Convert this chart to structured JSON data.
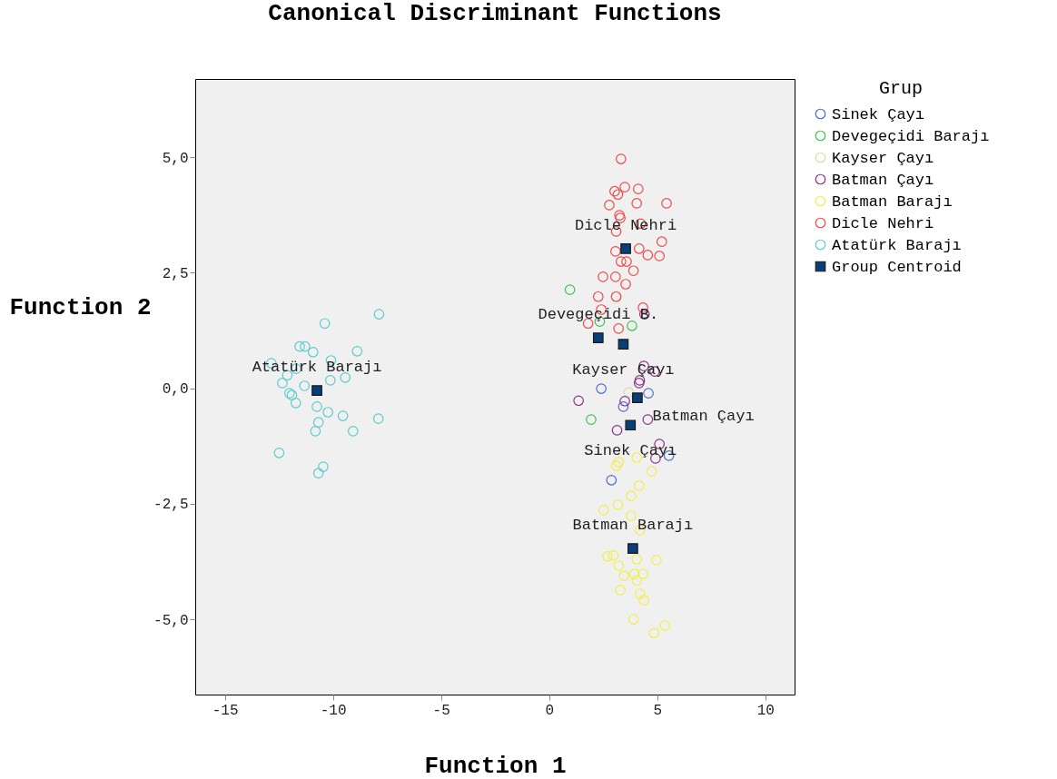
{
  "chart_data": {
    "type": "scatter",
    "title": "Canonical Discriminant Functions",
    "xlabel": "Function 1",
    "ylabel": "Function 2",
    "legend_title": "Grup",
    "legend": "right",
    "grid": false,
    "xlim": [
      -16.37,
      11.35
    ],
    "ylim": [
      -6.63,
      6.69
    ],
    "xticks": [
      -15,
      -10,
      -5,
      0,
      5,
      10
    ],
    "yticks": [
      {
        "value": 5,
        "label": "5,0"
      },
      {
        "value": 2.5,
        "label": "2,5"
      },
      {
        "value": 0,
        "label": "0,0"
      },
      {
        "value": -2.5,
        "label": "-2,5"
      },
      {
        "value": -5,
        "label": "-5,0"
      }
    ],
    "series": [
      {
        "name": "Sinek Çayı",
        "color": "#4a6ccc",
        "marker": "circle",
        "x": [
          2.41,
          4.59,
          3.43,
          5.54,
          2.88
        ],
        "values": [
          -0.01,
          -0.11,
          -0.4,
          -1.46,
          -1.99
        ]
      },
      {
        "name": "Devegeçidi Barajı",
        "color": "#3cc24a",
        "marker": "circle",
        "x": [
          0.96,
          2.34,
          3.83,
          1.94
        ],
        "values": [
          2.13,
          1.44,
          1.35,
          -0.68
        ]
      },
      {
        "name": "Kayser Çayı",
        "color": "#e0d9a4",
        "marker": "circle",
        "x": [
          3.1,
          3.68
        ],
        "values": [
          1.98,
          -0.09
        ]
      },
      {
        "name": "Batman Çayı",
        "color": "#8b2f8b",
        "marker": "circle",
        "x": [
          4.41,
          4.38,
          4.88,
          4.19,
          4.16,
          1.36,
          3.5,
          4.56,
          3.14,
          5.1,
          4.92
        ],
        "values": [
          1.6,
          0.48,
          0.36,
          0.17,
          0.11,
          -0.27,
          -0.28,
          -0.68,
          -0.91,
          -1.21,
          -1.52
        ]
      },
      {
        "name": "Batman Barajı",
        "color": "#f2ee45",
        "marker": "circle",
        "x": [
          4.05,
          3.21,
          3.1,
          4.74,
          4.16,
          3.79,
          3.18,
          2.52,
          3.79,
          4.2,
          2.7,
          2.96,
          4.05,
          4.96,
          3.21,
          3.47,
          3.94,
          4.34,
          4.05,
          3.29,
          4.2,
          4.38,
          3.9,
          5.36,
          4.85
        ],
        "values": [
          -1.5,
          -1.6,
          -1.68,
          -1.8,
          -2.11,
          -2.33,
          -2.52,
          -2.64,
          -2.76,
          -3.07,
          -3.64,
          -3.62,
          -3.7,
          -3.72,
          -3.84,
          -4.06,
          -4.02,
          -4.02,
          -4.16,
          -4.37,
          -4.45,
          -4.59,
          -5.0,
          -5.14,
          -5.3
        ]
      },
      {
        "name": "Dicle Nehri",
        "color": "#f04848",
        "marker": "circle",
        "x": [
          3.32,
          3.03,
          3.5,
          3.18,
          4.12,
          2.78,
          4.05,
          5.43,
          3.25,
          3.29,
          4.23,
          3.1,
          5.21,
          3.07,
          4.16,
          4.56,
          5.1,
          3.32,
          3.58,
          3.9,
          2.49,
          3.07,
          3.54,
          2.27,
          3.1,
          2.41,
          4.34,
          1.8,
          3.21
        ],
        "values": [
          4.96,
          4.26,
          4.35,
          4.19,
          4.31,
          3.96,
          4.0,
          4.0,
          3.74,
          3.68,
          3.56,
          3.39,
          3.17,
          2.96,
          3.02,
          2.88,
          2.86,
          2.74,
          2.74,
          2.54,
          2.41,
          2.41,
          2.25,
          1.98,
          1.98,
          1.7,
          1.74,
          1.4,
          1.29
        ]
      },
      {
        "name": "Atatürk Barajı",
        "color": "#5acccc",
        "marker": "circle",
        "x": [
          -10.38,
          -7.87,
          -11.54,
          -11.29,
          -10.92,
          -8.88,
          -12.85,
          -10.09,
          -11.71,
          -12.11,
          -9.43,
          -10.12,
          -12.34,
          -11.32,
          -12.01,
          -11.9,
          -11.72,
          -10.74,
          -10.23,
          -9.54,
          -7.9,
          -10.67,
          -10.81,
          -9.07,
          -12.49,
          -10.45,
          -10.67
        ],
        "values": [
          1.4,
          1.6,
          0.9,
          0.9,
          0.78,
          0.8,
          0.54,
          0.6,
          0.42,
          0.28,
          0.23,
          0.17,
          0.11,
          0.05,
          -0.11,
          -0.15,
          -0.32,
          -0.4,
          -0.52,
          -0.6,
          -0.66,
          -0.74,
          -0.93,
          -0.93,
          -1.4,
          -1.7,
          -1.84
        ]
      },
      {
        "name": "Group Centroid",
        "color": "#063f7a",
        "marker": "square",
        "x": [
          3.54,
          2.27,
          3.43,
          4.08,
          3.76,
          3.87,
          -10.74
        ],
        "values": [
          3.02,
          1.09,
          0.95,
          -0.21,
          -0.8,
          -3.47,
          -0.05
        ]
      }
    ],
    "annotations": [
      {
        "text": "Dicle Nehri",
        "x": 3.54,
        "y": 3.02
      },
      {
        "text": "Kayser Çayı",
        "x": 3.43,
        "y": 0.95
      },
      {
        "text": "Devegeçidi B.",
        "x": 2.27,
        "y": 1.09
      },
      {
        "text": "Batman Çayı",
        "x": 4.08,
        "y": -0.21
      },
      {
        "text": "Sinek Çayı",
        "x": 3.76,
        "y": -0.8
      },
      {
        "text": "Batman Barajı",
        "x": 3.87,
        "y": -3.47
      },
      {
        "text": "Atatürk Barajı",
        "x": -10.74,
        "y": -0.05
      }
    ]
  }
}
